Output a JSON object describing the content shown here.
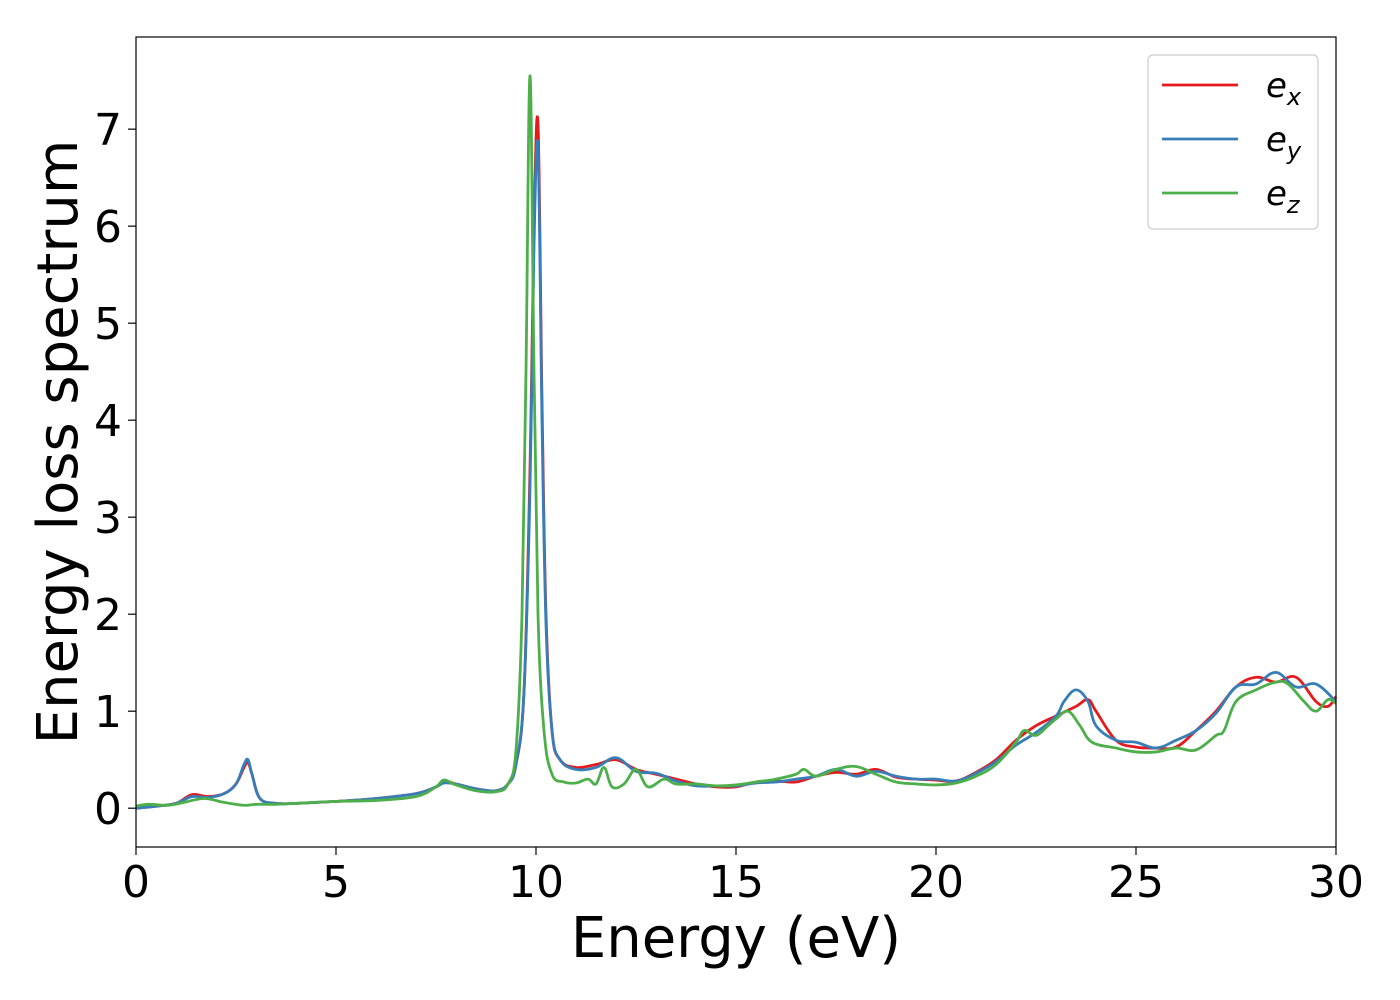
{
  "chart_data": {
    "type": "line",
    "xlabel": "Energy (eV)",
    "ylabel": "Energy loss spectrum",
    "xlim": [
      0,
      30
    ],
    "ylim": [
      -0.4,
      7.95
    ],
    "xticks": [
      0,
      5,
      10,
      15,
      20,
      25,
      30
    ],
    "yticks": [
      0,
      1,
      2,
      3,
      4,
      5,
      6,
      7
    ],
    "grid": false,
    "legend_position": "top-right",
    "series": [
      {
        "name": "e_x",
        "legend_base": "e",
        "legend_sub": "x",
        "color": "#e41a1c",
        "points": [
          [
            0,
            0
          ],
          [
            0.5,
            0.02
          ],
          [
            1.0,
            0.05
          ],
          [
            1.4,
            0.14
          ],
          [
            1.8,
            0.12
          ],
          [
            2.2,
            0.15
          ],
          [
            2.5,
            0.25
          ],
          [
            2.7,
            0.42
          ],
          [
            2.8,
            0.47
          ],
          [
            2.9,
            0.35
          ],
          [
            3.1,
            0.1
          ],
          [
            3.5,
            0.05
          ],
          [
            4.0,
            0.05
          ],
          [
            5.0,
            0.07
          ],
          [
            6.0,
            0.1
          ],
          [
            7.0,
            0.15
          ],
          [
            7.5,
            0.22
          ],
          [
            7.7,
            0.28
          ],
          [
            8.0,
            0.25
          ],
          [
            8.5,
            0.2
          ],
          [
            9.0,
            0.18
          ],
          [
            9.3,
            0.25
          ],
          [
            9.5,
            0.45
          ],
          [
            9.7,
            1.2
          ],
          [
            9.85,
            3.5
          ],
          [
            9.95,
            6.0
          ],
          [
            10.05,
            7.05
          ],
          [
            10.15,
            4.2
          ],
          [
            10.25,
            2.0
          ],
          [
            10.4,
            0.8
          ],
          [
            10.6,
            0.5
          ],
          [
            11.0,
            0.42
          ],
          [
            11.5,
            0.45
          ],
          [
            12.0,
            0.5
          ],
          [
            12.5,
            0.4
          ],
          [
            13.0,
            0.35
          ],
          [
            13.5,
            0.3
          ],
          [
            14.0,
            0.25
          ],
          [
            14.5,
            0.22
          ],
          [
            15.0,
            0.22
          ],
          [
            15.5,
            0.27
          ],
          [
            16.0,
            0.28
          ],
          [
            16.5,
            0.27
          ],
          [
            17.0,
            0.33
          ],
          [
            17.5,
            0.37
          ],
          [
            18.0,
            0.35
          ],
          [
            18.5,
            0.4
          ],
          [
            19.0,
            0.32
          ],
          [
            19.5,
            0.3
          ],
          [
            20.0,
            0.29
          ],
          [
            20.5,
            0.28
          ],
          [
            21.0,
            0.37
          ],
          [
            21.5,
            0.5
          ],
          [
            22.0,
            0.7
          ],
          [
            22.5,
            0.85
          ],
          [
            23.0,
            0.95
          ],
          [
            23.5,
            1.05
          ],
          [
            23.8,
            1.12
          ],
          [
            24.0,
            1.0
          ],
          [
            24.5,
            0.7
          ],
          [
            25.0,
            0.63
          ],
          [
            25.5,
            0.62
          ],
          [
            26.0,
            0.63
          ],
          [
            26.5,
            0.8
          ],
          [
            27.0,
            1.0
          ],
          [
            27.5,
            1.25
          ],
          [
            28.0,
            1.35
          ],
          [
            28.5,
            1.3
          ],
          [
            29.0,
            1.35
          ],
          [
            29.5,
            1.1
          ],
          [
            29.8,
            1.05
          ],
          [
            30,
            1.15
          ]
        ]
      },
      {
        "name": "e_y",
        "legend_base": "e",
        "legend_sub": "y",
        "color": "#377eb8",
        "points": [
          [
            0,
            0
          ],
          [
            0.5,
            0.02
          ],
          [
            1.0,
            0.05
          ],
          [
            1.4,
            0.12
          ],
          [
            1.8,
            0.11
          ],
          [
            2.2,
            0.15
          ],
          [
            2.5,
            0.25
          ],
          [
            2.7,
            0.45
          ],
          [
            2.8,
            0.5
          ],
          [
            2.9,
            0.35
          ],
          [
            3.1,
            0.1
          ],
          [
            3.5,
            0.05
          ],
          [
            4.0,
            0.05
          ],
          [
            5.0,
            0.07
          ],
          [
            6.0,
            0.1
          ],
          [
            7.0,
            0.15
          ],
          [
            7.5,
            0.22
          ],
          [
            7.7,
            0.26
          ],
          [
            8.0,
            0.25
          ],
          [
            8.5,
            0.2
          ],
          [
            9.0,
            0.18
          ],
          [
            9.3,
            0.25
          ],
          [
            9.5,
            0.45
          ],
          [
            9.7,
            1.2
          ],
          [
            9.85,
            3.3
          ],
          [
            9.95,
            5.8
          ],
          [
            10.05,
            6.8
          ],
          [
            10.15,
            4.0
          ],
          [
            10.25,
            1.9
          ],
          [
            10.4,
            0.8
          ],
          [
            10.6,
            0.5
          ],
          [
            11.0,
            0.4
          ],
          [
            11.5,
            0.42
          ],
          [
            12.0,
            0.52
          ],
          [
            12.5,
            0.38
          ],
          [
            13.0,
            0.36
          ],
          [
            13.5,
            0.28
          ],
          [
            14.0,
            0.23
          ],
          [
            14.5,
            0.23
          ],
          [
            15.0,
            0.23
          ],
          [
            15.5,
            0.26
          ],
          [
            16.0,
            0.27
          ],
          [
            16.5,
            0.3
          ],
          [
            17.0,
            0.33
          ],
          [
            17.5,
            0.4
          ],
          [
            18.0,
            0.33
          ],
          [
            18.5,
            0.38
          ],
          [
            19.0,
            0.33
          ],
          [
            19.5,
            0.3
          ],
          [
            20.0,
            0.3
          ],
          [
            20.5,
            0.28
          ],
          [
            21.0,
            0.36
          ],
          [
            21.5,
            0.48
          ],
          [
            22.0,
            0.65
          ],
          [
            22.5,
            0.78
          ],
          [
            23.0,
            0.95
          ],
          [
            23.2,
            1.1
          ],
          [
            23.5,
            1.22
          ],
          [
            23.8,
            1.1
          ],
          [
            24.0,
            0.85
          ],
          [
            24.5,
            0.7
          ],
          [
            25.0,
            0.68
          ],
          [
            25.5,
            0.62
          ],
          [
            26.0,
            0.7
          ],
          [
            26.5,
            0.8
          ],
          [
            27.0,
            0.98
          ],
          [
            27.5,
            1.25
          ],
          [
            28.0,
            1.28
          ],
          [
            28.5,
            1.4
          ],
          [
            29.0,
            1.25
          ],
          [
            29.5,
            1.28
          ],
          [
            30,
            1.1
          ]
        ]
      },
      {
        "name": "e_z",
        "legend_base": "e",
        "legend_sub": "z",
        "color": "#4daf4a",
        "points": [
          [
            0,
            0.02
          ],
          [
            0.3,
            0.04
          ],
          [
            0.8,
            0.03
          ],
          [
            1.2,
            0.06
          ],
          [
            1.7,
            0.1
          ],
          [
            2.2,
            0.06
          ],
          [
            2.7,
            0.03
          ],
          [
            3.0,
            0.04
          ],
          [
            3.5,
            0.04
          ],
          [
            4.0,
            0.05
          ],
          [
            5.0,
            0.07
          ],
          [
            6.0,
            0.08
          ],
          [
            7.0,
            0.12
          ],
          [
            7.5,
            0.22
          ],
          [
            7.7,
            0.29
          ],
          [
            8.0,
            0.24
          ],
          [
            8.5,
            0.18
          ],
          [
            9.0,
            0.17
          ],
          [
            9.3,
            0.25
          ],
          [
            9.5,
            0.6
          ],
          [
            9.65,
            2.0
          ],
          [
            9.75,
            4.5
          ],
          [
            9.85,
            7.55
          ],
          [
            9.95,
            4.5
          ],
          [
            10.05,
            2.0
          ],
          [
            10.2,
            0.8
          ],
          [
            10.4,
            0.35
          ],
          [
            10.7,
            0.27
          ],
          [
            11.0,
            0.26
          ],
          [
            11.3,
            0.3
          ],
          [
            11.5,
            0.25
          ],
          [
            11.7,
            0.42
          ],
          [
            11.9,
            0.22
          ],
          [
            12.2,
            0.25
          ],
          [
            12.5,
            0.4
          ],
          [
            12.8,
            0.22
          ],
          [
            13.2,
            0.3
          ],
          [
            13.5,
            0.25
          ],
          [
            14.0,
            0.25
          ],
          [
            14.5,
            0.23
          ],
          [
            15.0,
            0.24
          ],
          [
            15.5,
            0.27
          ],
          [
            16.0,
            0.3
          ],
          [
            16.5,
            0.35
          ],
          [
            16.7,
            0.4
          ],
          [
            17.0,
            0.33
          ],
          [
            17.5,
            0.4
          ],
          [
            18.0,
            0.43
          ],
          [
            18.5,
            0.35
          ],
          [
            19.0,
            0.27
          ],
          [
            19.5,
            0.25
          ],
          [
            20.0,
            0.24
          ],
          [
            20.5,
            0.26
          ],
          [
            21.0,
            0.33
          ],
          [
            21.5,
            0.45
          ],
          [
            22.0,
            0.68
          ],
          [
            22.2,
            0.8
          ],
          [
            22.5,
            0.75
          ],
          [
            22.8,
            0.85
          ],
          [
            23.0,
            0.92
          ],
          [
            23.3,
            1.0
          ],
          [
            23.6,
            0.85
          ],
          [
            23.9,
            0.68
          ],
          [
            24.5,
            0.62
          ],
          [
            25.0,
            0.58
          ],
          [
            25.5,
            0.58
          ],
          [
            26.0,
            0.62
          ],
          [
            26.5,
            0.6
          ],
          [
            27.0,
            0.75
          ],
          [
            27.2,
            0.8
          ],
          [
            27.5,
            1.1
          ],
          [
            28.0,
            1.22
          ],
          [
            28.5,
            1.3
          ],
          [
            28.8,
            1.28
          ],
          [
            29.2,
            1.1
          ],
          [
            29.5,
            1.0
          ],
          [
            29.8,
            1.12
          ],
          [
            30,
            1.08
          ]
        ]
      }
    ]
  }
}
